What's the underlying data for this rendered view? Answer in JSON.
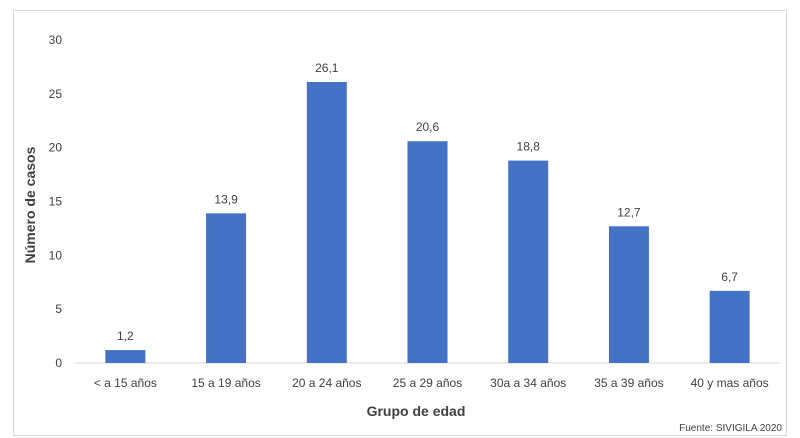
{
  "chart_data": {
    "type": "bar",
    "categories": [
      "< a 15 años",
      "15 a 19 años",
      "20 a 24 años",
      "25 a 29 años",
      "30a a 34 años",
      "35 a 39 años",
      "40 y mas años"
    ],
    "values": [
      1.2,
      13.9,
      26.1,
      20.6,
      18.8,
      12.7,
      6.7
    ],
    "data_labels": [
      "1,2",
      "13,9",
      "26,1",
      "20,6",
      "18,8",
      "12,7",
      "6,7"
    ],
    "xlabel": "Grupo de edad",
    "ylabel": "Número de casos",
    "ylim": [
      0,
      30
    ],
    "yticks": [
      "0",
      "5",
      "10",
      "15",
      "20",
      "25",
      "30"
    ],
    "grid": false,
    "legend": "none",
    "bar_color": "#4472c4",
    "source": "Fuente: SIVIGILA 2020"
  }
}
